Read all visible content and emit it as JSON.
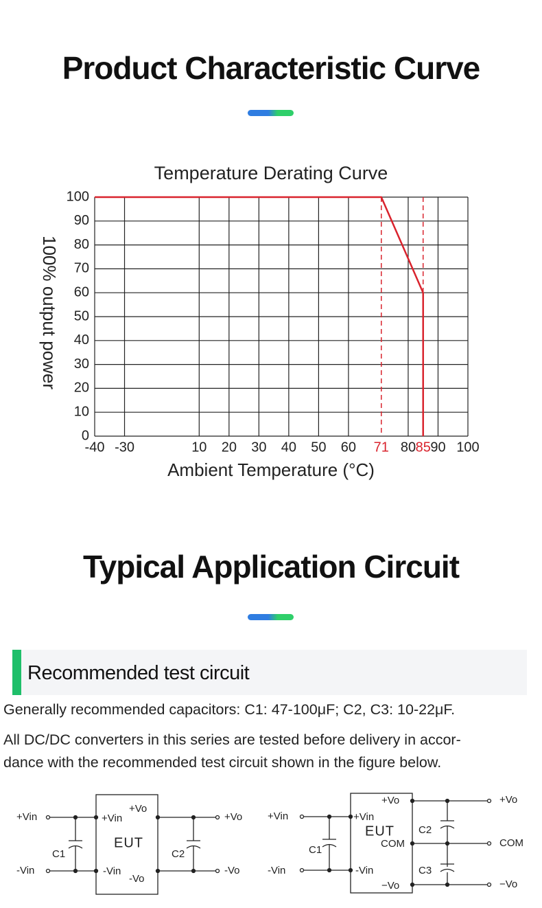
{
  "header": {
    "title": "Product Characteristic Curve"
  },
  "chart_data": {
    "type": "line",
    "title": "Temperature Derating Curve",
    "x_label": "Ambient Temperature (°C)",
    "y_label": "100% output power",
    "xlim": [
      -40,
      100
    ],
    "ylim": [
      0,
      100
    ],
    "xticks": [
      -40,
      -30,
      10,
      20,
      30,
      40,
      50,
      60,
      71,
      80,
      85,
      90,
      100
    ],
    "yticks": [
      0,
      10,
      20,
      30,
      40,
      50,
      60,
      70,
      80,
      90,
      100
    ],
    "highlight_xticks": [
      71,
      85
    ],
    "highlight_color": "#d9232d",
    "grid": true,
    "series": [
      {
        "x": [
          -40,
          71,
          85,
          85
        ],
        "values": [
          100,
          100,
          60,
          0
        ],
        "color": "#d9232d"
      }
    ]
  },
  "section": {
    "title": "Typical Application Circuit",
    "subtitle": "Recommended test circuit",
    "paragraphs": [
      "Generally recommended capacitors: C1: 47-100μF; C2, C3: 10-22μF.",
      "All DC/DC converters in this series are tested before delivery in accor-",
      "dance with the recommended test circuit shown in the figure below."
    ]
  },
  "circuits": [
    {
      "labels": [
        "+Vin",
        "-Vin",
        "C1",
        "+Vin",
        "+Vo",
        "EUT",
        "-Vin",
        "-Vo",
        "C2",
        "+Vo",
        "-Vo"
      ]
    },
    {
      "labels": [
        "+Vin",
        "-Vin",
        "C1",
        "+Vo",
        "+Vin",
        "EUT",
        "COM",
        "-Vin",
        "−Vo",
        "C2",
        "C3",
        "+Vo",
        "COM",
        "−Vo"
      ]
    }
  ]
}
